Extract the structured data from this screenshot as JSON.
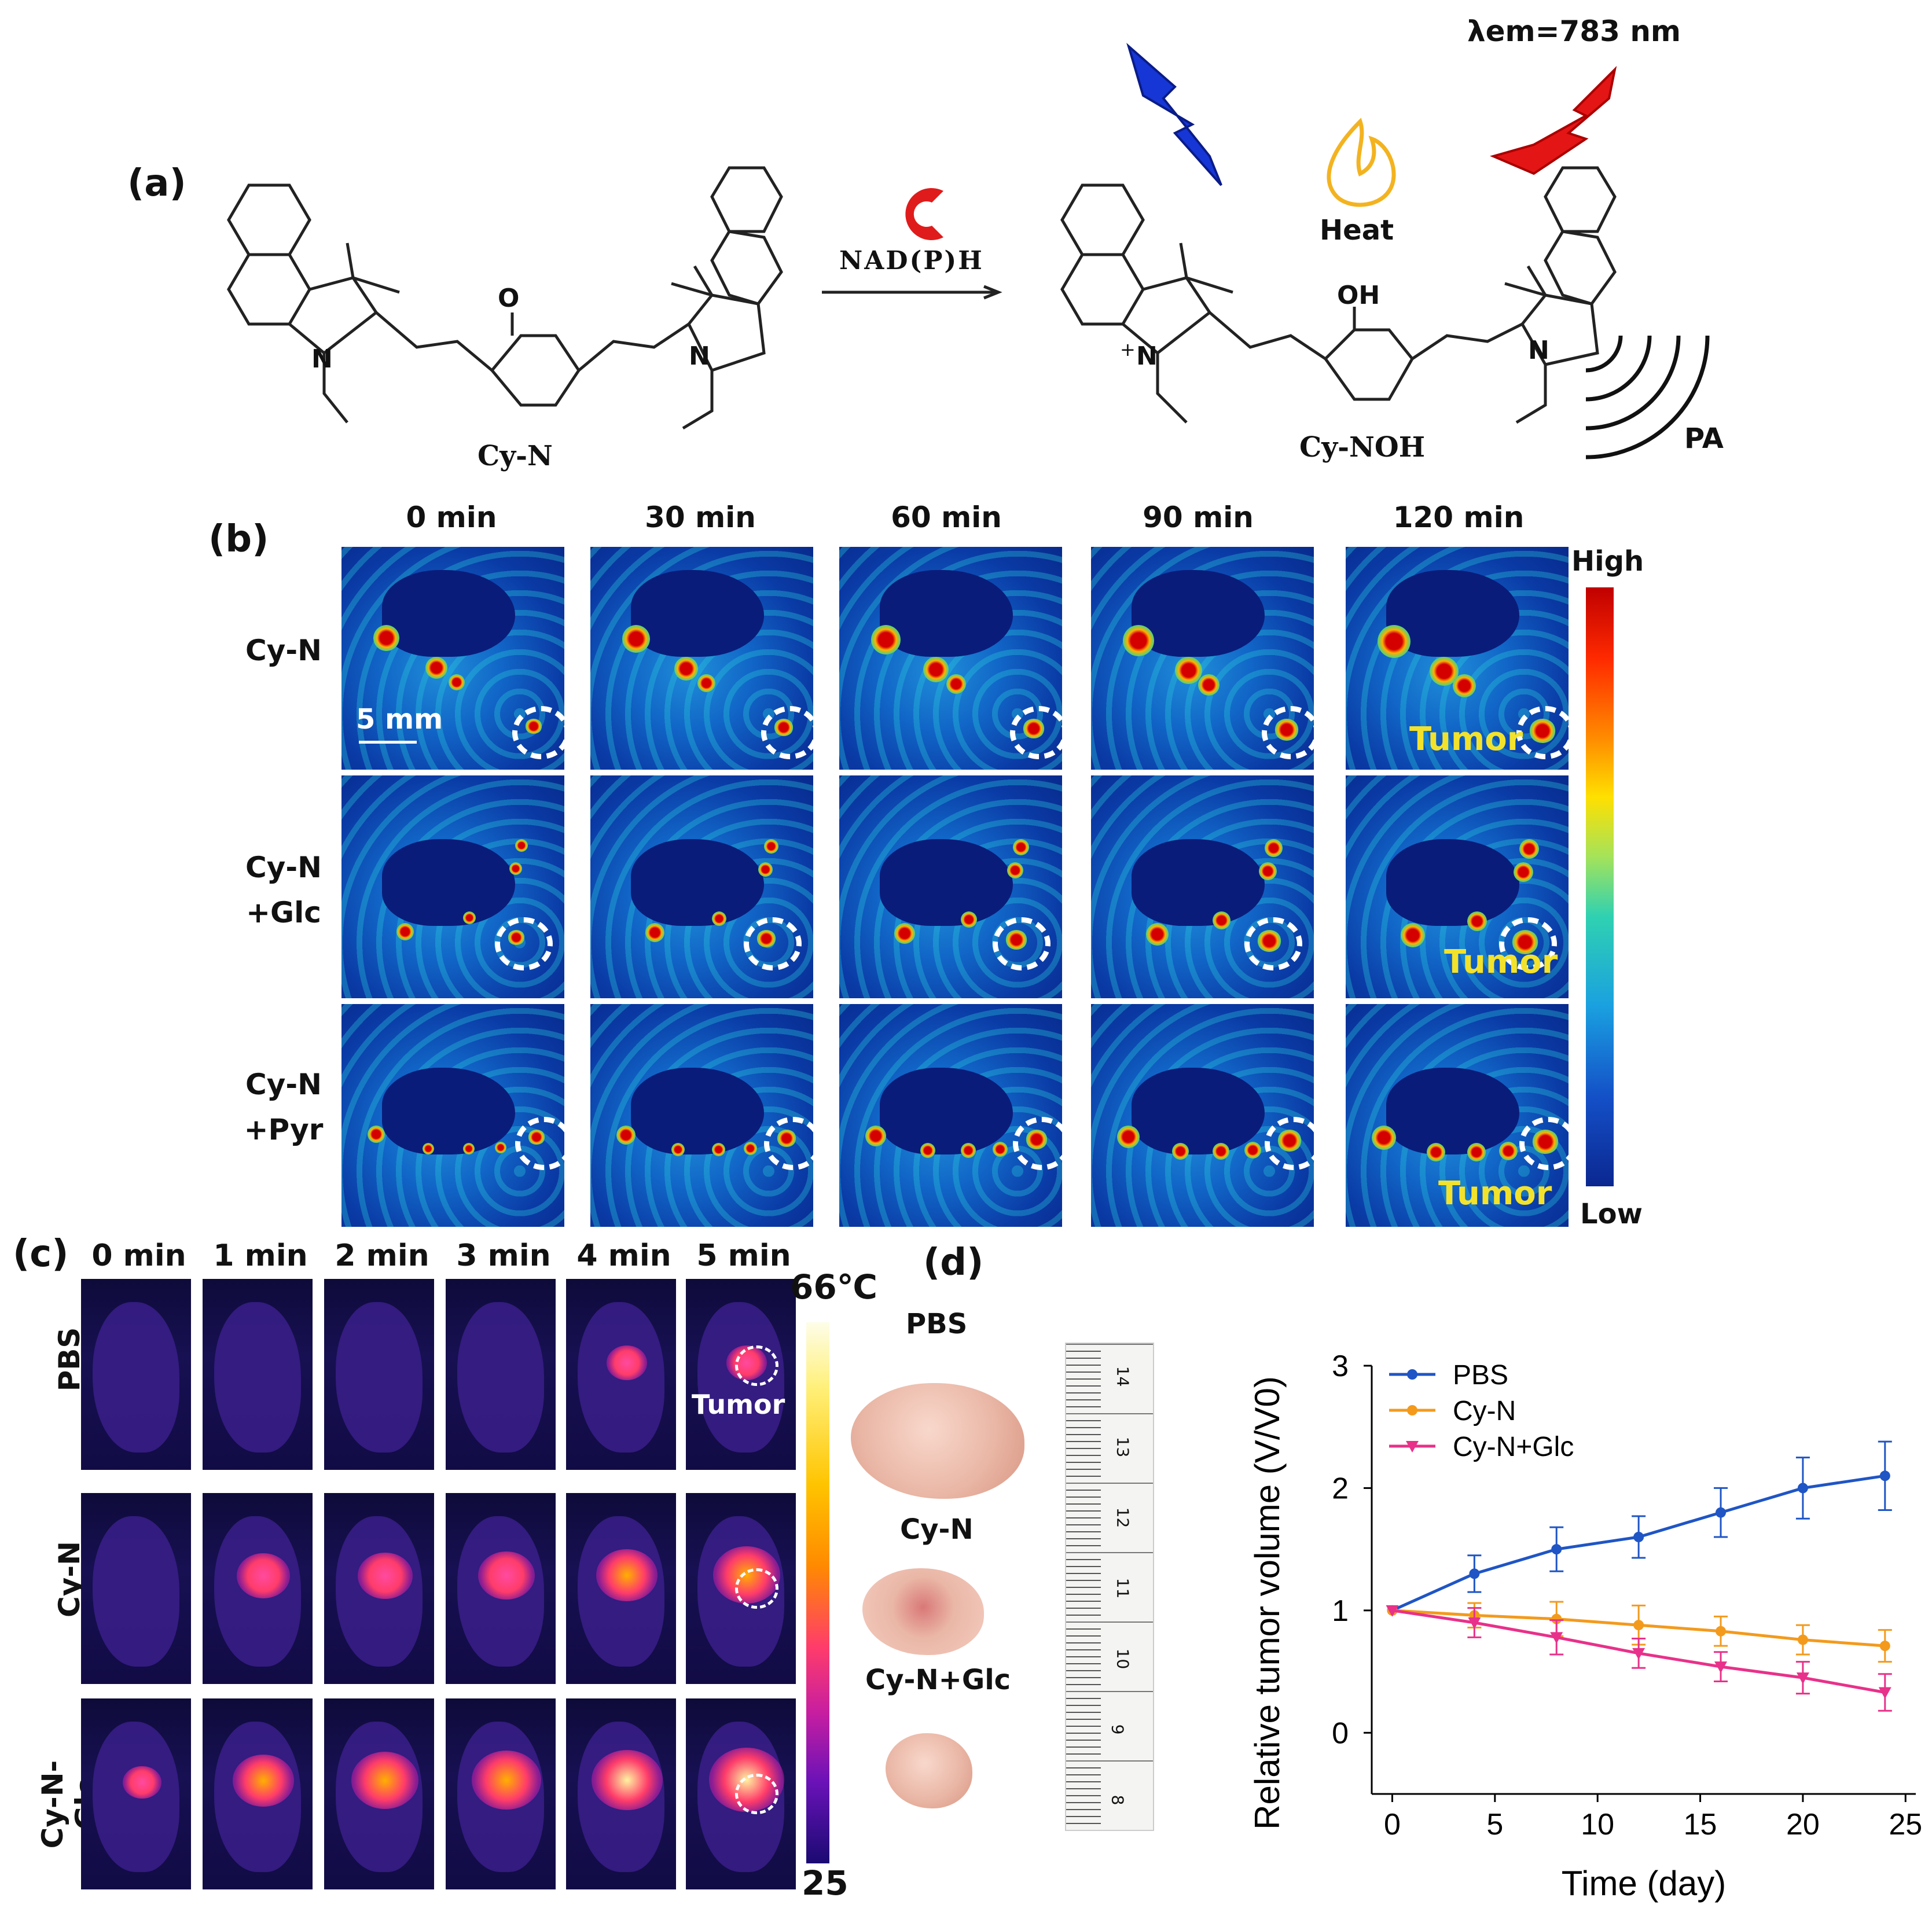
{
  "panel_a": {
    "label": "(a)",
    "reactant": "Cy-N",
    "reagent": "NAD(P)H",
    "product": "Cy-NOH",
    "emission": "λem=783 nm",
    "heat": "Heat",
    "pa": "PA",
    "atoms": {
      "O": "O",
      "OH": "OH",
      "N": "N",
      "N_plus": "N",
      "plus": "+"
    }
  },
  "panel_b": {
    "label": "(b)",
    "time_points": [
      "0 min",
      "30 min",
      "60 min",
      "90 min",
      "120 min"
    ],
    "row_lines": [
      [
        "Cy-N",
        ""
      ],
      [
        "Cy-N",
        "+Glc"
      ],
      [
        "Cy-N",
        "+Pyr"
      ]
    ],
    "scale_bar": "5 mm",
    "tumor_label": "Tumor",
    "colorbar_high": "High",
    "colorbar_low": "Low"
  },
  "panel_c": {
    "label": "(c)",
    "time_points": [
      "0 min",
      "1 min",
      "2 min",
      "3 min",
      "4 min",
      "5 min"
    ],
    "rows": [
      "PBS",
      "Cy-N",
      "Cy-N-Glc"
    ],
    "tumor_label": "Tumor",
    "colorbar_max": "66℃",
    "colorbar_min": "25"
  },
  "panel_d": {
    "label": "(d)",
    "photo_labels": [
      "PBS",
      "Cy-N",
      "Cy-N+Glc"
    ],
    "ruler_numbers": [
      "14",
      "13",
      "12",
      "11",
      "10",
      "9",
      "8"
    ]
  },
  "chart_data": {
    "type": "line",
    "title": "",
    "xlabel": "Time (day)",
    "ylabel": "Relative tumor volume (V/V0)",
    "xlim": [
      -1,
      25.5
    ],
    "ylim": [
      -0.5,
      3.0
    ],
    "xticks": [
      "0",
      "5",
      "10",
      "15",
      "20",
      "25"
    ],
    "yticks": [
      "0",
      "1",
      "2",
      "3"
    ],
    "x": [
      0,
      4,
      8,
      12,
      16,
      20,
      24
    ],
    "series": [
      {
        "name": "PBS",
        "color": "#1f55c5",
        "marker": "circle",
        "values": [
          1.0,
          1.3,
          1.5,
          1.6,
          1.8,
          2.0,
          2.1
        ],
        "errors": [
          0.1,
          0.15,
          0.18,
          0.17,
          0.2,
          0.25,
          0.28
        ]
      },
      {
        "name": "Cy-N",
        "color": "#f39a1c",
        "marker": "circle",
        "values": [
          1.0,
          0.96,
          0.93,
          0.88,
          0.83,
          0.76,
          0.71
        ],
        "errors": [
          0.1,
          0.1,
          0.14,
          0.16,
          0.12,
          0.12,
          0.13
        ]
      },
      {
        "name": "Cy-N+Glc",
        "color": "#e8318a",
        "marker": "triangle",
        "values": [
          1.0,
          0.9,
          0.78,
          0.65,
          0.54,
          0.45,
          0.33
        ],
        "errors": [
          0.1,
          0.12,
          0.14,
          0.12,
          0.12,
          0.13,
          0.15
        ]
      }
    ]
  }
}
